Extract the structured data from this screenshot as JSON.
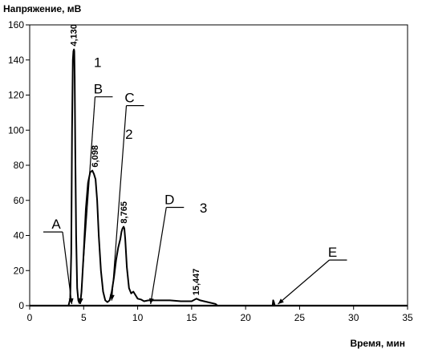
{
  "chart_data": {
    "type": "line",
    "title": "",
    "ylabel": "Напряжение, мВ",
    "xlabel": "Время, мин",
    "xlim": [
      0,
      35
    ],
    "ylim": [
      0,
      160
    ],
    "x_ticks": [
      0,
      5,
      10,
      15,
      20,
      25,
      30,
      35
    ],
    "y_ticks": [
      0,
      20,
      40,
      60,
      80,
      100,
      120,
      140,
      160
    ],
    "grid": false,
    "series": [
      {
        "x": [
          0,
          3.6,
          3.75,
          3.85,
          3.92,
          4.0,
          4.05,
          4.1,
          4.13,
          4.17,
          4.22,
          4.3,
          4.4,
          4.5,
          4.6,
          4.7,
          4.8,
          5.0,
          5.2,
          5.4,
          5.6,
          5.8,
          5.95,
          6.1,
          6.25,
          6.4,
          6.6,
          6.8,
          7.0,
          7.2,
          7.4,
          7.6,
          7.8,
          8.0,
          8.2,
          8.4,
          8.5,
          8.6,
          8.7,
          8.77,
          8.85,
          9.0,
          9.2,
          9.4,
          9.6,
          9.8,
          10.0,
          10.3,
          10.6,
          11.0,
          12.0,
          13.0,
          14.0,
          15.0,
          15.45,
          15.8,
          16.5,
          17.2,
          17.4,
          20.0,
          22.5,
          22.55,
          22.62,
          22.7,
          25.0,
          30.0,
          35.0
        ],
        "y": [
          0,
          0,
          4,
          30,
          100,
          140,
          145,
          146,
          145,
          130,
          90,
          40,
          10,
          3,
          1.5,
          2,
          8,
          30,
          55,
          70,
          76,
          77,
          75,
          72,
          60,
          40,
          20,
          8,
          3,
          2,
          3,
          8,
          16,
          26,
          33,
          38,
          42,
          44,
          45,
          44,
          38,
          22,
          10,
          7,
          8,
          6,
          4,
          3.5,
          2.5,
          3,
          3,
          3,
          2.5,
          2.5,
          4,
          3,
          2,
          1,
          0,
          0,
          0,
          3,
          2,
          0,
          0,
          0,
          0
        ]
      }
    ],
    "peak_labels": [
      {
        "text": "4,130",
        "x": 4.13,
        "y": 146
      },
      {
        "text": "6,098",
        "x": 6.1,
        "y": 77
      },
      {
        "text": "8,765",
        "x": 8.77,
        "y": 45
      },
      {
        "text": "15,447",
        "x": 15.45,
        "y": 4
      }
    ],
    "annotations": [
      {
        "text": "A",
        "label_x": 2.6,
        "label_y": 42,
        "point_x": 3.9,
        "point_y": 0
      },
      {
        "text": "B",
        "label_x": 6.5,
        "label_y": 119,
        "point_x": 4.7,
        "point_y": 0
      },
      {
        "text": "C",
        "label_x": 9.4,
        "label_y": 114,
        "point_x": 7.6,
        "point_y": 2
      },
      {
        "text": "D",
        "label_x": 13.1,
        "label_y": 56,
        "point_x": 11.2,
        "point_y": 0
      },
      {
        "text": "E",
        "label_x": 28.2,
        "label_y": 26,
        "point_x": 23.0,
        "point_y": 0
      }
    ],
    "peak_numbers": [
      {
        "text": "1",
        "x": 6.3,
        "y": 136
      },
      {
        "text": "2",
        "x": 9.2,
        "y": 95
      },
      {
        "text": "3",
        "x": 16.1,
        "y": 53
      }
    ],
    "colors": {
      "line": "#000000",
      "axis": "#000000",
      "background": "#ffffff"
    }
  }
}
